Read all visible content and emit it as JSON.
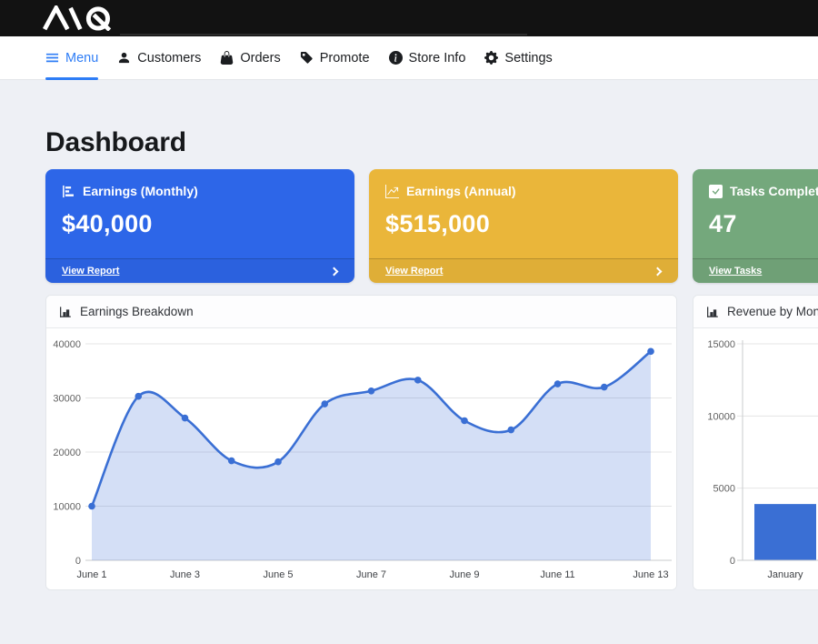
{
  "topbar": {
    "brand": "AIQ"
  },
  "nav": {
    "items": [
      {
        "label": "Menu",
        "icon": "hamburger-icon",
        "active": true
      },
      {
        "label": "Customers",
        "icon": "person-icon",
        "active": false
      },
      {
        "label": "Orders",
        "icon": "bag-icon",
        "active": false
      },
      {
        "label": "Promote",
        "icon": "tag-icon",
        "active": false
      },
      {
        "label": "Store Info",
        "icon": "info-icon",
        "active": false
      },
      {
        "label": "Settings",
        "icon": "gear-icon",
        "active": false
      }
    ],
    "accent_color": "#2e7df6"
  },
  "page": {
    "title": "Dashboard"
  },
  "stat_cards": [
    {
      "title": "Earnings (Monthly)",
      "value": "$40,000",
      "link_label": "View Report",
      "color": "#2d66e8",
      "icon": "hbar-chart-icon"
    },
    {
      "title": "Earnings (Annual)",
      "value": "$515,000",
      "link_label": "View Report",
      "color": "#eab63a",
      "icon": "graph-up-icon"
    },
    {
      "title": "Tasks Completed",
      "value": "47",
      "link_label": "View Tasks",
      "color": "#74a87c",
      "icon": "check-square-icon"
    }
  ],
  "chart_data": [
    {
      "type": "area",
      "title": "Earnings Breakdown",
      "x": [
        "June 1",
        "June 2",
        "June 3",
        "June 4",
        "June 5",
        "June 6",
        "June 7",
        "June 8",
        "June 9",
        "June 10",
        "June 11",
        "June 12",
        "June 13"
      ],
      "values": [
        10000,
        30300,
        26300,
        18400,
        18200,
        28900,
        31300,
        33300,
        25800,
        24100,
        32600,
        32000,
        38600
      ],
      "ylim": [
        0,
        40000
      ],
      "yticks": [
        0,
        10000,
        20000,
        30000,
        40000
      ],
      "x_tick_every": 2,
      "grid": true,
      "line_color": "#3a6fd4",
      "fill_color": "rgba(58,111,212,0.22)",
      "point_color": "#3a6fd4"
    },
    {
      "type": "bar",
      "title": "Revenue by Month",
      "categories": [
        "January"
      ],
      "values": [
        3900
      ],
      "ylim": [
        0,
        15000
      ],
      "yticks": [
        0,
        5000,
        10000,
        15000
      ],
      "grid": true,
      "bar_color": "#3a6fd4",
      "note_clipped": "chart continues beyond right edge of viewport"
    }
  ]
}
